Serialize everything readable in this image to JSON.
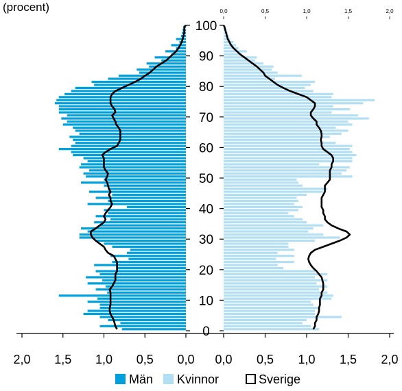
{
  "chart_data": {
    "type": "bar",
    "orientation": "horizontal",
    "layout": "population-pyramid",
    "unit_label": "(procent)",
    "y_axis": {
      "min": 0,
      "max": 100,
      "tick_labels": [
        "0",
        "10",
        "20",
        "30",
        "40",
        "50",
        "60",
        "70",
        "80",
        "90",
        "100"
      ]
    },
    "x_axis_bottom": {
      "left_tick_labels": [
        "2,0",
        "1,5",
        "1,0",
        "0,5",
        "0,0"
      ],
      "right_tick_labels": [
        "0,0",
        "0,5",
        "1,0",
        "1,5",
        "2,0"
      ],
      "left_ticks": [
        2.0,
        1.5,
        1.0,
        0.5,
        0.0
      ],
      "right_ticks": [
        0.0,
        0.5,
        1.0,
        1.5,
        2.0
      ],
      "max": 2.0
    },
    "x_axis_top_right": {
      "tick_labels": [
        "0,0",
        "0,5",
        "1,0",
        "1,5",
        "2,0"
      ],
      "ticks": [
        0.0,
        0.5,
        1.0,
        1.5,
        2.0
      ]
    },
    "ages": [
      0,
      1,
      2,
      3,
      4,
      5,
      6,
      7,
      8,
      9,
      10,
      11,
      12,
      13,
      14,
      15,
      16,
      17,
      18,
      19,
      20,
      21,
      22,
      23,
      24,
      25,
      26,
      27,
      28,
      29,
      30,
      31,
      32,
      33,
      34,
      35,
      36,
      37,
      38,
      39,
      40,
      41,
      42,
      43,
      44,
      45,
      46,
      47,
      48,
      49,
      50,
      51,
      52,
      53,
      54,
      55,
      56,
      57,
      58,
      59,
      60,
      61,
      62,
      63,
      64,
      65,
      66,
      67,
      68,
      69,
      70,
      71,
      72,
      73,
      74,
      75,
      76,
      77,
      78,
      79,
      80,
      81,
      82,
      83,
      84,
      85,
      86,
      87,
      88,
      89,
      90,
      91,
      92,
      93,
      94,
      95,
      96,
      97,
      98,
      99
    ],
    "series": [
      {
        "name": "Män",
        "side": "left",
        "color": "#00a0dc",
        "values": [
          0.78,
          1.05,
          0.8,
          0.95,
          1.05,
          1.25,
          1.2,
          1.05,
          1.05,
          1.2,
          1.08,
          1.55,
          0.96,
          1.1,
          0.98,
          1.2,
          1.02,
          1.22,
          1.05,
          1.1,
          0.85,
          1.12,
          0.9,
          0.7,
          0.92,
          0.72,
          0.68,
          0.9,
          1.0,
          1.1,
          1.3,
          1.3,
          1.2,
          1.28,
          1.05,
          1.12,
          0.92,
          1.1,
          0.95,
          1.0,
          0.72,
          1.2,
          0.95,
          1.1,
          0.9,
          1.18,
          0.95,
          1.0,
          1.28,
          1.0,
          1.22,
          1.25,
          1.18,
          1.3,
          1.28,
          1.2,
          1.25,
          1.38,
          1.4,
          1.55,
          1.4,
          1.35,
          1.38,
          1.42,
          1.3,
          1.35,
          1.38,
          1.5,
          1.45,
          1.52,
          1.45,
          1.55,
          1.55,
          1.55,
          1.6,
          1.58,
          1.55,
          1.48,
          1.4,
          1.35,
          1.12,
          1.15,
          0.95,
          0.82,
          0.57,
          0.6,
          0.45,
          0.48,
          0.3,
          0.38,
          0.18,
          0.25,
          0.12,
          0.18,
          0.08,
          0.12,
          0.06,
          0.05,
          0.04,
          0.03
        ]
      },
      {
        "name": "Kvinnor",
        "side": "right",
        "color": "#b3dff5",
        "values": [
          1.15,
          1.05,
          0.95,
          1.0,
          1.42,
          1.1,
          1.1,
          1.15,
          1.08,
          1.05,
          1.3,
          1.32,
          1.25,
          1.15,
          1.25,
          1.12,
          1.25,
          1.1,
          1.25,
          1.1,
          0.72,
          0.65,
          0.85,
          0.63,
          0.85,
          0.65,
          0.85,
          0.78,
          0.78,
          1.1,
          1.4,
          1.2,
          1.02,
          1.08,
          1.2,
          1.0,
          0.95,
          0.85,
          0.78,
          0.9,
          0.95,
          0.85,
          0.9,
          0.88,
          1.0,
          1.2,
          1.25,
          0.95,
          0.9,
          0.88,
          1.55,
          1.42,
          1.48,
          1.52,
          1.15,
          1.55,
          1.55,
          1.6,
          1.55,
          1.52,
          1.55,
          1.35,
          1.15,
          1.28,
          1.42,
          1.5,
          1.35,
          1.55,
          1.5,
          1.75,
          1.62,
          1.3,
          1.52,
          1.32,
          1.68,
          1.82,
          1.3,
          1.32,
          1.08,
          0.98,
          1.05,
          1.1,
          0.62,
          0.94,
          0.65,
          0.58,
          0.6,
          0.48,
          0.38,
          0.4,
          0.22,
          0.28,
          0.18,
          0.15,
          0.12,
          0.08,
          0.06,
          0.05,
          0.03,
          0.02
        ]
      },
      {
        "name": "Sverige",
        "type": "line",
        "color": "#000000",
        "left_values": [
          0.84,
          0.86,
          0.87,
          0.88,
          0.9,
          0.92,
          0.93,
          0.93,
          0.92,
          0.92,
          0.92,
          0.92,
          0.92,
          0.93,
          0.9,
          0.88,
          0.86,
          0.86,
          0.86,
          0.84,
          0.84,
          0.84,
          0.84,
          0.86,
          0.88,
          0.95,
          0.98,
          1.0,
          1.05,
          1.1,
          1.14,
          1.16,
          1.16,
          1.1,
          1.05,
          1.0,
          0.98,
          1.0,
          0.98,
          0.95,
          0.92,
          0.9,
          0.92,
          0.92,
          0.94,
          0.92,
          0.94,
          0.95,
          0.96,
          0.98,
          0.96,
          0.95,
          0.98,
          1.0,
          1.0,
          1.0,
          1.0,
          1.02,
          0.98,
          0.92,
          0.84,
          0.82,
          0.8,
          0.8,
          0.8,
          0.8,
          0.82,
          0.85,
          0.86,
          0.88,
          0.9,
          0.86,
          0.87,
          0.9,
          0.92,
          0.92,
          0.92,
          0.9,
          0.86,
          0.78,
          0.7,
          0.62,
          0.55,
          0.5,
          0.44,
          0.4,
          0.36,
          0.3,
          0.24,
          0.2,
          0.16,
          0.12,
          0.09,
          0.07,
          0.05,
          0.04,
          0.03,
          0.02,
          0.02,
          0.02
        ],
        "right_values": [
          1.08,
          1.1,
          1.1,
          1.12,
          1.12,
          1.14,
          1.15,
          1.15,
          1.16,
          1.16,
          1.16,
          1.18,
          1.18,
          1.2,
          1.2,
          1.2,
          1.19,
          1.18,
          1.15,
          1.12,
          1.08,
          1.05,
          1.03,
          1.02,
          1.03,
          1.05,
          1.1,
          1.2,
          1.3,
          1.4,
          1.48,
          1.52,
          1.48,
          1.38,
          1.3,
          1.25,
          1.22,
          1.22,
          1.2,
          1.2,
          1.18,
          1.18,
          1.18,
          1.18,
          1.2,
          1.22,
          1.22,
          1.22,
          1.25,
          1.28,
          1.28,
          1.28,
          1.28,
          1.3,
          1.3,
          1.32,
          1.32,
          1.3,
          1.25,
          1.2,
          1.18,
          1.18,
          1.17,
          1.18,
          1.18,
          1.17,
          1.15,
          1.12,
          1.12,
          1.08,
          1.05,
          1.05,
          1.08,
          1.1,
          1.1,
          1.05,
          1.0,
          0.9,
          0.8,
          0.72,
          0.65,
          0.6,
          0.55,
          0.5,
          0.48,
          0.44,
          0.4,
          0.35,
          0.3,
          0.25,
          0.2,
          0.16,
          0.12,
          0.09,
          0.07,
          0.05,
          0.04,
          0.03,
          0.02,
          0.01
        ]
      }
    ],
    "legend": {
      "placement": "bottom",
      "items": [
        {
          "label": "Män",
          "style": "filled",
          "color": "#00a0dc"
        },
        {
          "label": "Kvinnor",
          "style": "filled",
          "color": "#b3dff5"
        },
        {
          "label": "Sverige",
          "style": "outline",
          "color": "#000000"
        }
      ]
    }
  }
}
